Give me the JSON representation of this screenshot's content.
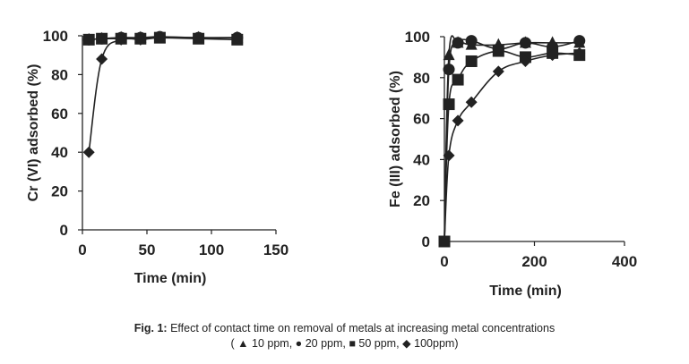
{
  "caption": {
    "label": "Fig. 1:",
    "text": " Effect of contact time on removal of metals at increasing metal concentrations",
    "legend_open": "(",
    "legend_items": [
      {
        "symbol": "▲",
        "text": " 10 ppm, "
      },
      {
        "symbol": "●",
        "text": " 20 ppm, "
      },
      {
        "symbol": "■",
        "text": " 50 ppm, "
      },
      {
        "symbol": "◆",
        "text": " 100ppm)"
      }
    ]
  },
  "chart_data": [
    {
      "type": "line",
      "title": "",
      "xlabel": "Time (min)",
      "ylabel": "Cr (VI) adsorbed (%)",
      "xlim": [
        0,
        150
      ],
      "ylim": [
        0,
        100
      ],
      "xticks": [
        0,
        50,
        100,
        150
      ],
      "yticks": [
        0,
        20,
        40,
        60,
        80,
        100
      ],
      "grid": false,
      "x": [
        5,
        15,
        30,
        45,
        60,
        90,
        120
      ],
      "series": [
        {
          "name": "10 ppm",
          "marker": "triangle",
          "values": [
            98,
            98.5,
            99,
            99,
            99,
            99,
            99
          ]
        },
        {
          "name": "20 ppm",
          "marker": "circle",
          "values": [
            98,
            98.5,
            99,
            99,
            99.5,
            99,
            99
          ]
        },
        {
          "name": "50 ppm",
          "marker": "square",
          "values": [
            98,
            98.5,
            98.5,
            98.5,
            99,
            98.5,
            98
          ]
        },
        {
          "name": "100 ppm",
          "marker": "diamond",
          "values": [
            40,
            88,
            98,
            98,
            99,
            99,
            99
          ]
        }
      ]
    },
    {
      "type": "line",
      "title": "",
      "xlabel": "Time (min)",
      "ylabel": "Fe (III) adsorbed (%)",
      "xlim": [
        0,
        400
      ],
      "ylim": [
        0,
        100
      ],
      "xticks": [
        0,
        200,
        400
      ],
      "yticks": [
        0,
        20,
        40,
        60,
        80,
        100
      ],
      "grid": false,
      "x": [
        0,
        10,
        30,
        60,
        120,
        180,
        240,
        300
      ],
      "series": [
        {
          "name": "10 ppm",
          "marker": "triangle",
          "values": [
            0,
            91,
            97,
            96,
            96,
            97,
            97,
            97
          ]
        },
        {
          "name": "20 ppm",
          "marker": "circle",
          "values": [
            0,
            84,
            97,
            98,
            94,
            97,
            95,
            98
          ]
        },
        {
          "name": "50 ppm",
          "marker": "square",
          "values": [
            0,
            67,
            79,
            88,
            93,
            90,
            92,
            91
          ]
        },
        {
          "name": "100 ppm",
          "marker": "diamond",
          "values": [
            0,
            42,
            59,
            68,
            83,
            88,
            91,
            92
          ]
        }
      ]
    }
  ]
}
